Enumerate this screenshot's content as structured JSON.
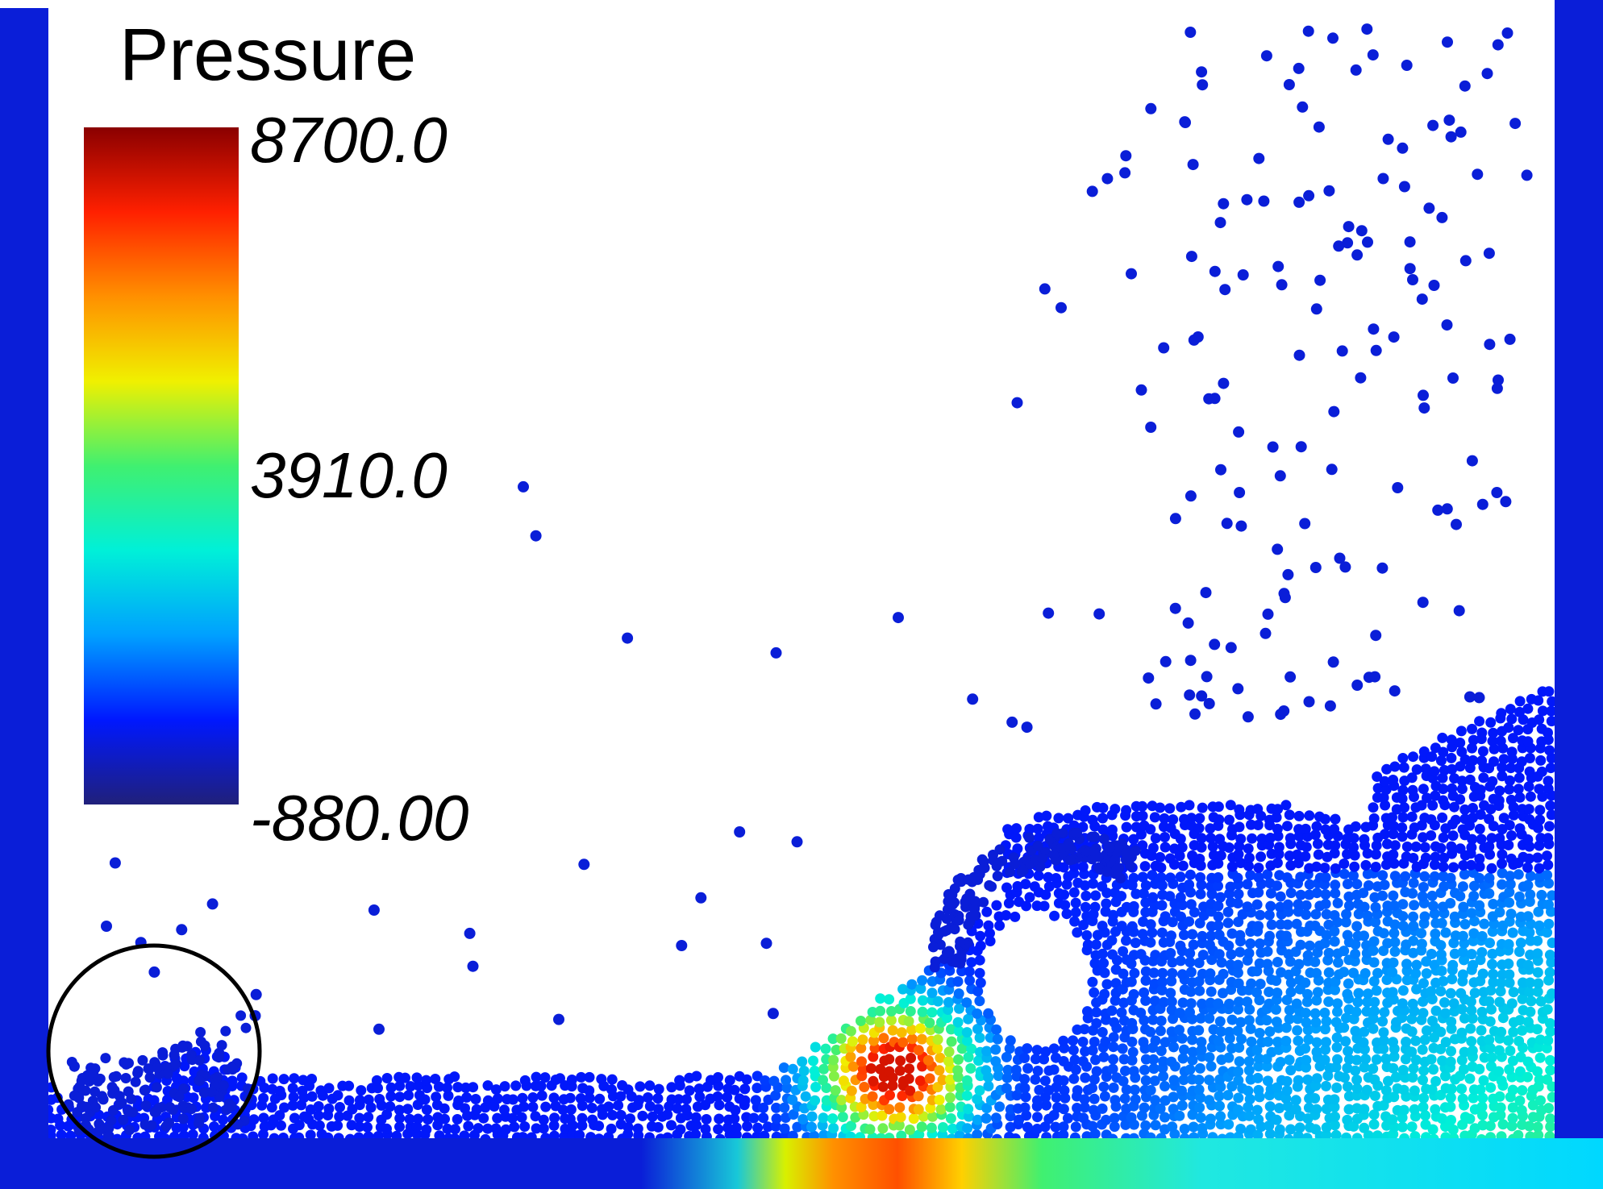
{
  "legend": {
    "title": "Pressure",
    "max_label": "8700.0",
    "mid_label": "3910.0",
    "min_label": "-880.00",
    "range": [
      -880.0,
      8700.0
    ]
  },
  "colormap": [
    "#20207a",
    "#0018ff",
    "#00a0ff",
    "#00f0d8",
    "#40f070",
    "#f0f000",
    "#ff9000",
    "#ff2000",
    "#8a0000"
  ],
  "colors": {
    "wall": "#0a1ed8",
    "particle": "#0a1ed8",
    "highlight_circle": "#000000",
    "background": "#ffffff"
  },
  "scene": {
    "type": "particle pressure simulation"
  }
}
